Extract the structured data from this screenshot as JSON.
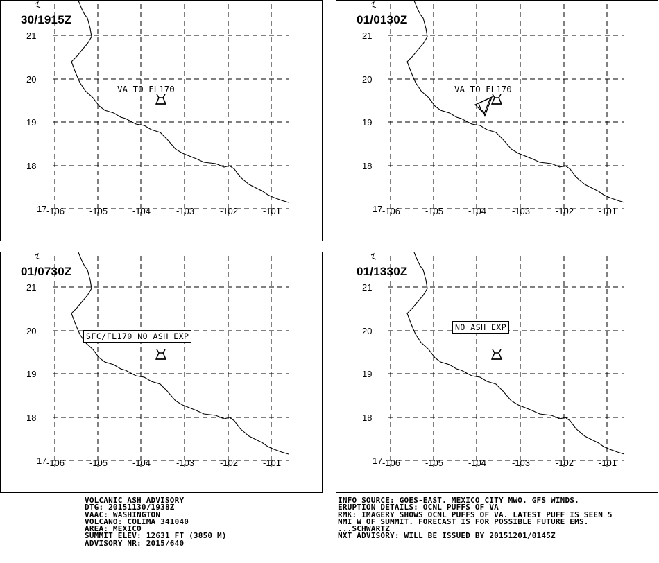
{
  "panels": [
    {
      "time": "30/1915Z",
      "label": "VA TO FL170",
      "label_style": "plain",
      "has_cloud": false
    },
    {
      "time": "01/0130Z",
      "label": "VA TO FL170",
      "label_style": "plain",
      "has_cloud": true
    },
    {
      "time": "01/0730Z",
      "label": "SFC/FL170 NO ASH EXP",
      "label_style": "boxed",
      "has_cloud": false
    },
    {
      "time": "01/1330Z",
      "label": "NO ASH EXP",
      "label_style": "boxed",
      "has_cloud": false
    }
  ],
  "map": {
    "lat_labels": [
      "21",
      "20",
      "19",
      "18",
      "17"
    ],
    "lon_labels": [
      "-106",
      "-105",
      "-104",
      "-103",
      "-102",
      "-101"
    ],
    "volcano_icon": "volcano-icon",
    "line_color": "#000000"
  },
  "advisory_left": [
    "VOLCANIC ASH ADVISORY",
    "DTG: 20151130/1938Z",
    "VAAC: WASHINGTON",
    "VOLCANO: COLIMA 341040",
    "AREA: MEXICO",
    "SUMMIT ELEV: 12631 FT (3850 M)",
    "ADVISORY NR: 2015/640"
  ],
  "advisory_right": [
    "INFO SOURCE: GOES-EAST. MEXICO CITY MWO. GFS WINDS.",
    "ERUPTION DETAILS: OCNL PUFFS OF VA",
    "RMK: IMAGERY SHOWS OCNL PUFFS OF VA. LATEST PUFF IS SEEN 5",
    "NMI W OF SUMMIT. FORECAST IS FOR POSSIBLE FUTURE EMS.",
    "...SCHWARTZ",
    "NXT ADVISORY: WILL BE ISSUED BY 20151201/0145Z"
  ]
}
